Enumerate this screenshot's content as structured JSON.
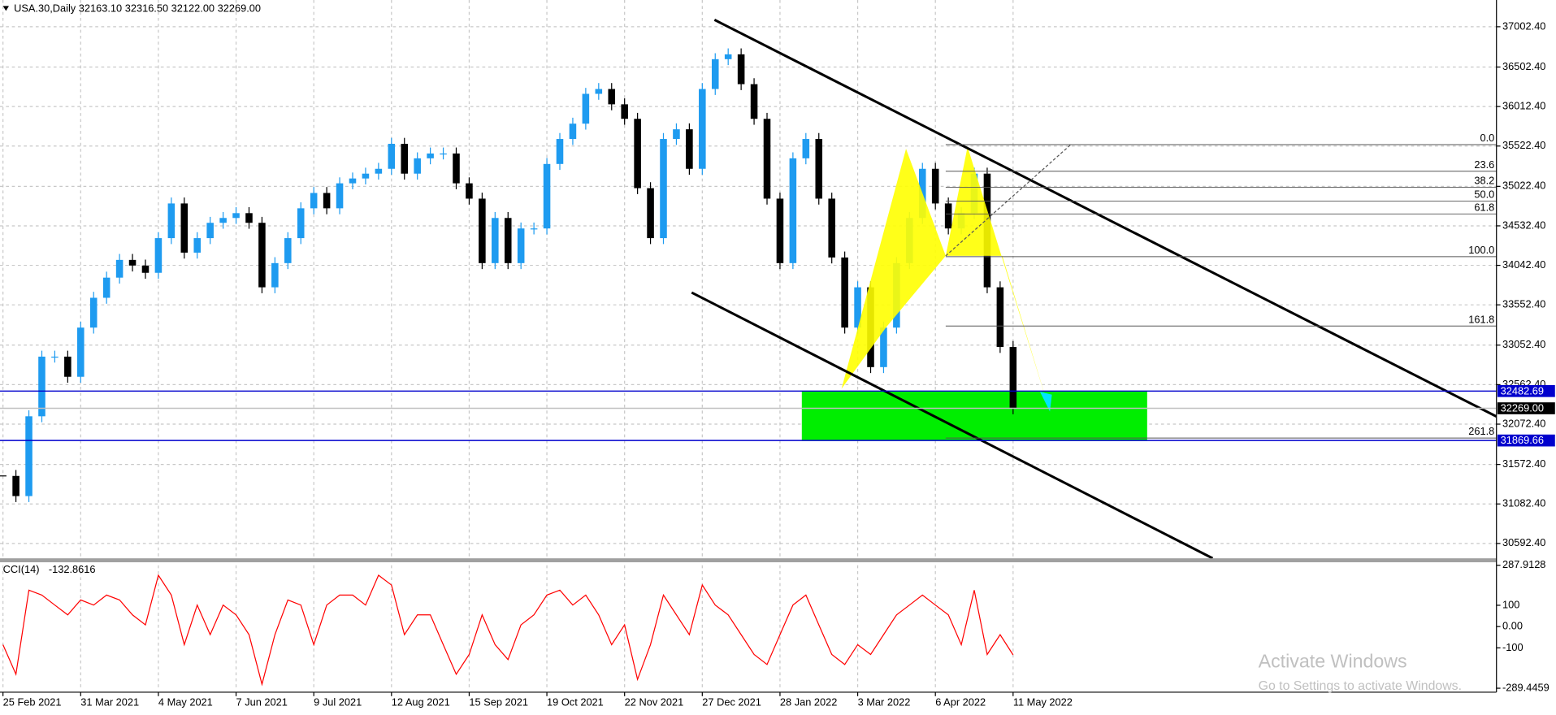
{
  "header": "USA.30,Daily 32163.10 32316.50 32122.00 32269.00",
  "chart_data": [
    {
      "type": "candlestick",
      "x": [
        "25 Feb 2021",
        null,
        null,
        null,
        null,
        null,
        "31 Mar 2021",
        null,
        null,
        null,
        null,
        null,
        "4 May 2021",
        null,
        null,
        null,
        null,
        null,
        "7 Jun 2021",
        null,
        null,
        null,
        null,
        null,
        "9 Jul 2021",
        null,
        null,
        null,
        null,
        null,
        "12 Aug 2021",
        null,
        null,
        null,
        null,
        null,
        "15 Sep 2021",
        null,
        null,
        null,
        null,
        null,
        "19 Oct 2021",
        null,
        null,
        null,
        null,
        null,
        "22 Nov 2021",
        null,
        null,
        null,
        null,
        null,
        "27 Dec 2021",
        null,
        null,
        null,
        null,
        null,
        "28 Jan 2022",
        null,
        null,
        null,
        null,
        null,
        "3 Mar 2022",
        null,
        null,
        null,
        null,
        null,
        "6 Apr 2022",
        null,
        null,
        null,
        null,
        null,
        "11 May 2022"
      ],
      "values": [
        31430,
        31180,
        32170,
        32910,
        32910,
        32660,
        33270,
        33640,
        33890,
        34110,
        34040,
        33950,
        34380,
        34810,
        34200,
        34380,
        34570,
        34630,
        34690,
        34570,
        33770,
        34070,
        34380,
        34750,
        34940,
        34750,
        35060,
        35120,
        35180,
        35240,
        35550,
        35180,
        35370,
        35430,
        35430,
        35060,
        34870,
        34070,
        34630,
        34070,
        34500,
        34500,
        35300,
        35610,
        35800,
        36170,
        36230,
        36040,
        35860,
        35000,
        34380,
        35610,
        35730,
        35240,
        36230,
        36600,
        36660,
        36290,
        35860,
        34870,
        34070,
        35370,
        35610,
        34870,
        34140,
        33270,
        33770,
        32780,
        33270,
        34070,
        34630,
        35240,
        34810,
        34500,
        34690,
        35180,
        33770,
        33030,
        32269
      ],
      "up_color": "#1e9bf0",
      "down_color": "#000000",
      "ylim": [
        30408,
        37334
      ],
      "yticks": [
        {
          "value": 37002.4,
          "label": "37002.40"
        },
        {
          "value": 36502.4,
          "label": "36502.40"
        },
        {
          "value": 36012.4,
          "label": "36012.40"
        },
        {
          "value": 35522.4,
          "label": "35522.40"
        },
        {
          "value": 35022.4,
          "label": "35022.40"
        },
        {
          "value": 34532.4,
          "label": "34532.40"
        },
        {
          "value": 34042.4,
          "label": "34042.40"
        },
        {
          "value": 33552.4,
          "label": "33552.40"
        },
        {
          "value": 33052.4,
          "label": "33052.40"
        },
        {
          "value": 32562.4,
          "label": "32562.40"
        },
        {
          "value": 32072.4,
          "label": "32072.40"
        },
        {
          "value": 31572.4,
          "label": "31572.40"
        },
        {
          "value": 31082.4,
          "label": "31082.40"
        },
        {
          "value": 30592.4,
          "label": "30592.40"
        }
      ],
      "grid": true,
      "zone": {
        "from": 31869.66,
        "to": 32482.69,
        "color": "#00ee00"
      },
      "price_lines": [
        {
          "price": 32482.69,
          "color": "#0000cd"
        },
        {
          "price": 32269,
          "label": "32269.00",
          "color": "#000000"
        },
        {
          "price": 31869.66,
          "color": "#0000cd"
        }
      ],
      "fib_levels": [
        {
          "label": "0.0",
          "price": 35540
        },
        {
          "label": "23.6",
          "price": 35210
        },
        {
          "label": "38.2",
          "price": 35010
        },
        {
          "label": "50.0",
          "price": 34840
        },
        {
          "label": "61.8",
          "price": 34680
        },
        {
          "label": "100.0",
          "price": 34150
        },
        {
          "label": "161.8",
          "price": 33290
        },
        {
          "label": "261.8",
          "price": 31900
        }
      ]
    },
    {
      "type": "line",
      "title": "CCI(14)",
      "color": "#ff0000",
      "values": [
        -85,
        -224,
        171,
        148,
        101,
        55,
        125,
        101,
        148,
        125,
        55,
        8,
        241,
        148,
        -85,
        101,
        -38,
        101,
        55,
        -38,
        -271,
        -38,
        125,
        101,
        -85,
        101,
        148,
        148,
        101,
        241,
        195,
        -38,
        55,
        55,
        -85,
        -224,
        -131,
        55,
        -85,
        -155,
        8,
        55,
        148,
        171,
        101,
        148,
        55,
        -85,
        8,
        -248,
        -85,
        148,
        55,
        -38,
        195,
        101,
        55,
        -38,
        -131,
        -178,
        -38,
        101,
        148,
        8,
        -131,
        -178,
        -85,
        -131,
        -38,
        55,
        101,
        148,
        101,
        55,
        -85,
        171,
        -131,
        -38,
        -132.8616
      ],
      "ylim": [
        -289.4459,
        287.9128
      ],
      "yticks": [
        287.9128,
        100,
        {
          "value": 0,
          "label": "0.00"
        },
        -100,
        -289.4459
      ]
    }
  ],
  "watermark": {
    "title": "Activate Windows",
    "subtitle": "Go to Settings to activate Windows."
  }
}
